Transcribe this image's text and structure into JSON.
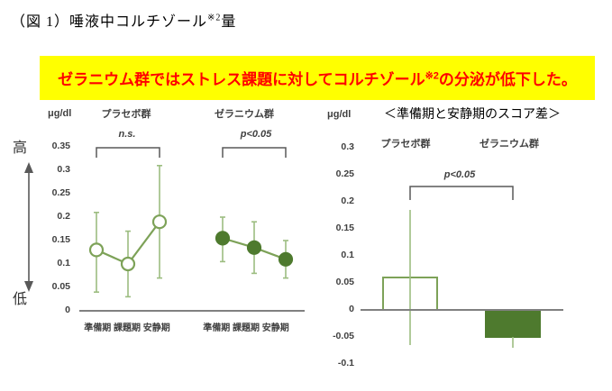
{
  "page": {
    "title_prefix": "（図 1）唾液中コルチゾール",
    "title_sup": "※2",
    "title_suffix": "量"
  },
  "banner": {
    "text_before_sup": "ゼラニウム群ではストレス課題に対してコルチゾール",
    "sup": "※2",
    "text_after_sup": "の分泌が低下した。",
    "bg": "#ffff00",
    "text_color": "#ff0000"
  },
  "axis_indicator": {
    "high": "高",
    "low": "低"
  },
  "colors": {
    "accent_light": "#7da258",
    "accent_lighter": "#9cbd80",
    "accent_dark": "#4e7a2e",
    "axis": "#808080",
    "bracket": "#595959",
    "label": "#404040"
  },
  "chart_data": [
    {
      "type": "line",
      "unit": "μg/dl",
      "ylim": [
        0,
        0.35
      ],
      "yticks": [
        0.35,
        0.3,
        0.25,
        0.2,
        0.15,
        0.1,
        0.05,
        0
      ],
      "categories": [
        "準備期",
        "課題期",
        "安静期"
      ],
      "xlabel": "準備期 課題期 安静期",
      "grid": false,
      "groups": [
        {
          "name": "プラセボ群",
          "significance": "n.s.",
          "marker": "open",
          "values": [
            0.13,
            0.1,
            0.19
          ],
          "error_high": [
            0.21,
            0.17,
            0.31
          ],
          "error_low": [
            0.04,
            0.03,
            0.07
          ]
        },
        {
          "name": "ゼラニウム群",
          "significance": "p<0.05",
          "marker": "filled",
          "values": [
            0.155,
            0.135,
            0.11
          ],
          "error_high": [
            0.2,
            0.19,
            0.15
          ],
          "error_low": [
            0.105,
            0.08,
            0.07
          ]
        }
      ]
    },
    {
      "type": "bar",
      "title": "＜準備期と安静期のスコア差＞",
      "unit": "μg/dl",
      "ylim": [
        -0.1,
        0.3
      ],
      "yticks": [
        0.3,
        0.25,
        0.2,
        0.15,
        0.1,
        0.05,
        0,
        -0.05,
        -0.1
      ],
      "significance": "p<0.05",
      "grid": false,
      "bars": [
        {
          "name": "プラセボ群",
          "value": 0.06,
          "style": "open",
          "error_high": 0.185,
          "error_low": -0.065
        },
        {
          "name": "ゼラニウム群",
          "value": -0.05,
          "style": "filled",
          "error_high": null,
          "error_low": -0.07
        }
      ]
    }
  ]
}
